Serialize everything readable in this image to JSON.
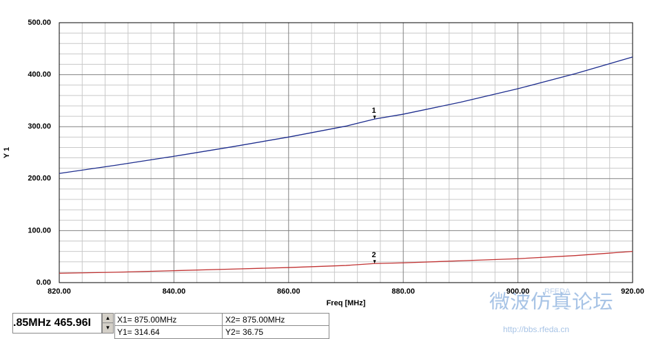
{
  "chart_data": {
    "type": "line",
    "y_label": "Y 1",
    "x_label": "Freq [MHz]",
    "x": [
      820,
      830,
      840,
      850,
      860,
      870,
      875,
      880,
      890,
      900,
      910,
      920
    ],
    "series": [
      {
        "name": "1",
        "color": "#1a2a8c",
        "values": [
          210,
          226,
          243,
          261,
          280,
          301,
          314.64,
          324,
          347,
          373,
          402,
          434
        ]
      },
      {
        "name": "2",
        "color": "#c03030",
        "values": [
          18,
          20,
          23,
          26,
          29,
          33,
          36.75,
          38,
          42,
          46,
          52,
          60
        ]
      }
    ],
    "markers": [
      {
        "label": "1",
        "x": 875,
        "y": 314.64
      },
      {
        "label": "2",
        "x": 875,
        "y": 36.75
      }
    ],
    "xlim": [
      820,
      920
    ],
    "ylim": [
      0,
      500
    ],
    "xticks": [
      {
        "value": 820,
        "label": "820.00"
      },
      {
        "value": 840,
        "label": "840.00"
      },
      {
        "value": 860,
        "label": "860.00"
      },
      {
        "value": 880,
        "label": "880.00"
      },
      {
        "value": 900,
        "label": "900.00"
      },
      {
        "value": 920,
        "label": "920.00"
      }
    ],
    "yticks": [
      {
        "value": 0,
        "label": "0.00"
      },
      {
        "value": 100,
        "label": "100.00"
      },
      {
        "value": 200,
        "label": "200.00"
      },
      {
        "value": 300,
        "label": "300.00"
      },
      {
        "value": 400,
        "label": "400.00"
      },
      {
        "value": 500,
        "label": "500.00"
      }
    ],
    "grid": true
  },
  "readout": {
    "value_box": ".85MHz 465.96I",
    "x1": "X1= 875.00MHz",
    "y1": "Y1= 314.64",
    "x2": "X2= 875.00MHz",
    "y2": "Y2= 36.75"
  },
  "watermark": {
    "site_name": "微波仿真论坛",
    "url": "http://bbs.rfeda.cn",
    "brand": "RFEDA"
  }
}
